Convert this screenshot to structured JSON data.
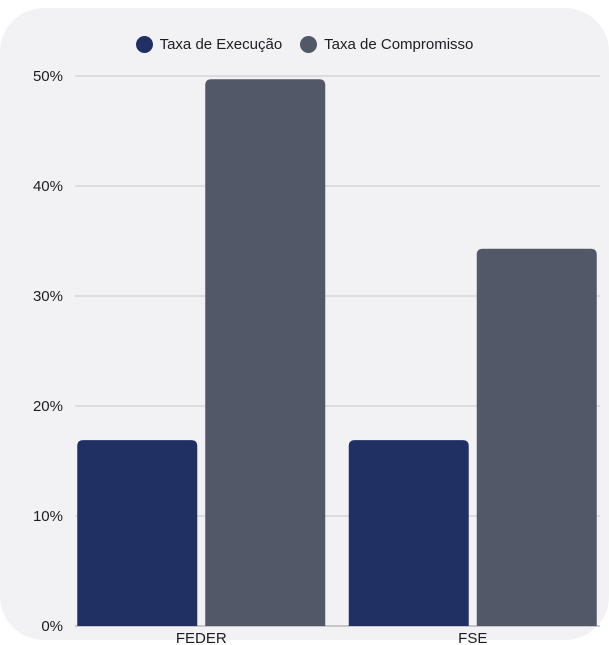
{
  "chart_data": {
    "type": "bar",
    "categories": [
      "FEDER",
      "FSE"
    ],
    "series": [
      {
        "name": "Taxa de Execução",
        "values": [
          16.9,
          16.9
        ],
        "color": "#203062"
      },
      {
        "name": "Taxa de Compromisso",
        "values": [
          49.7,
          34.3
        ],
        "color": "#525868"
      }
    ],
    "yticks": [
      "0%",
      "10%",
      "20%",
      "30%",
      "40%",
      "50%"
    ],
    "ylim": [
      0,
      50
    ],
    "grid": true,
    "legend_position": "top-center"
  }
}
